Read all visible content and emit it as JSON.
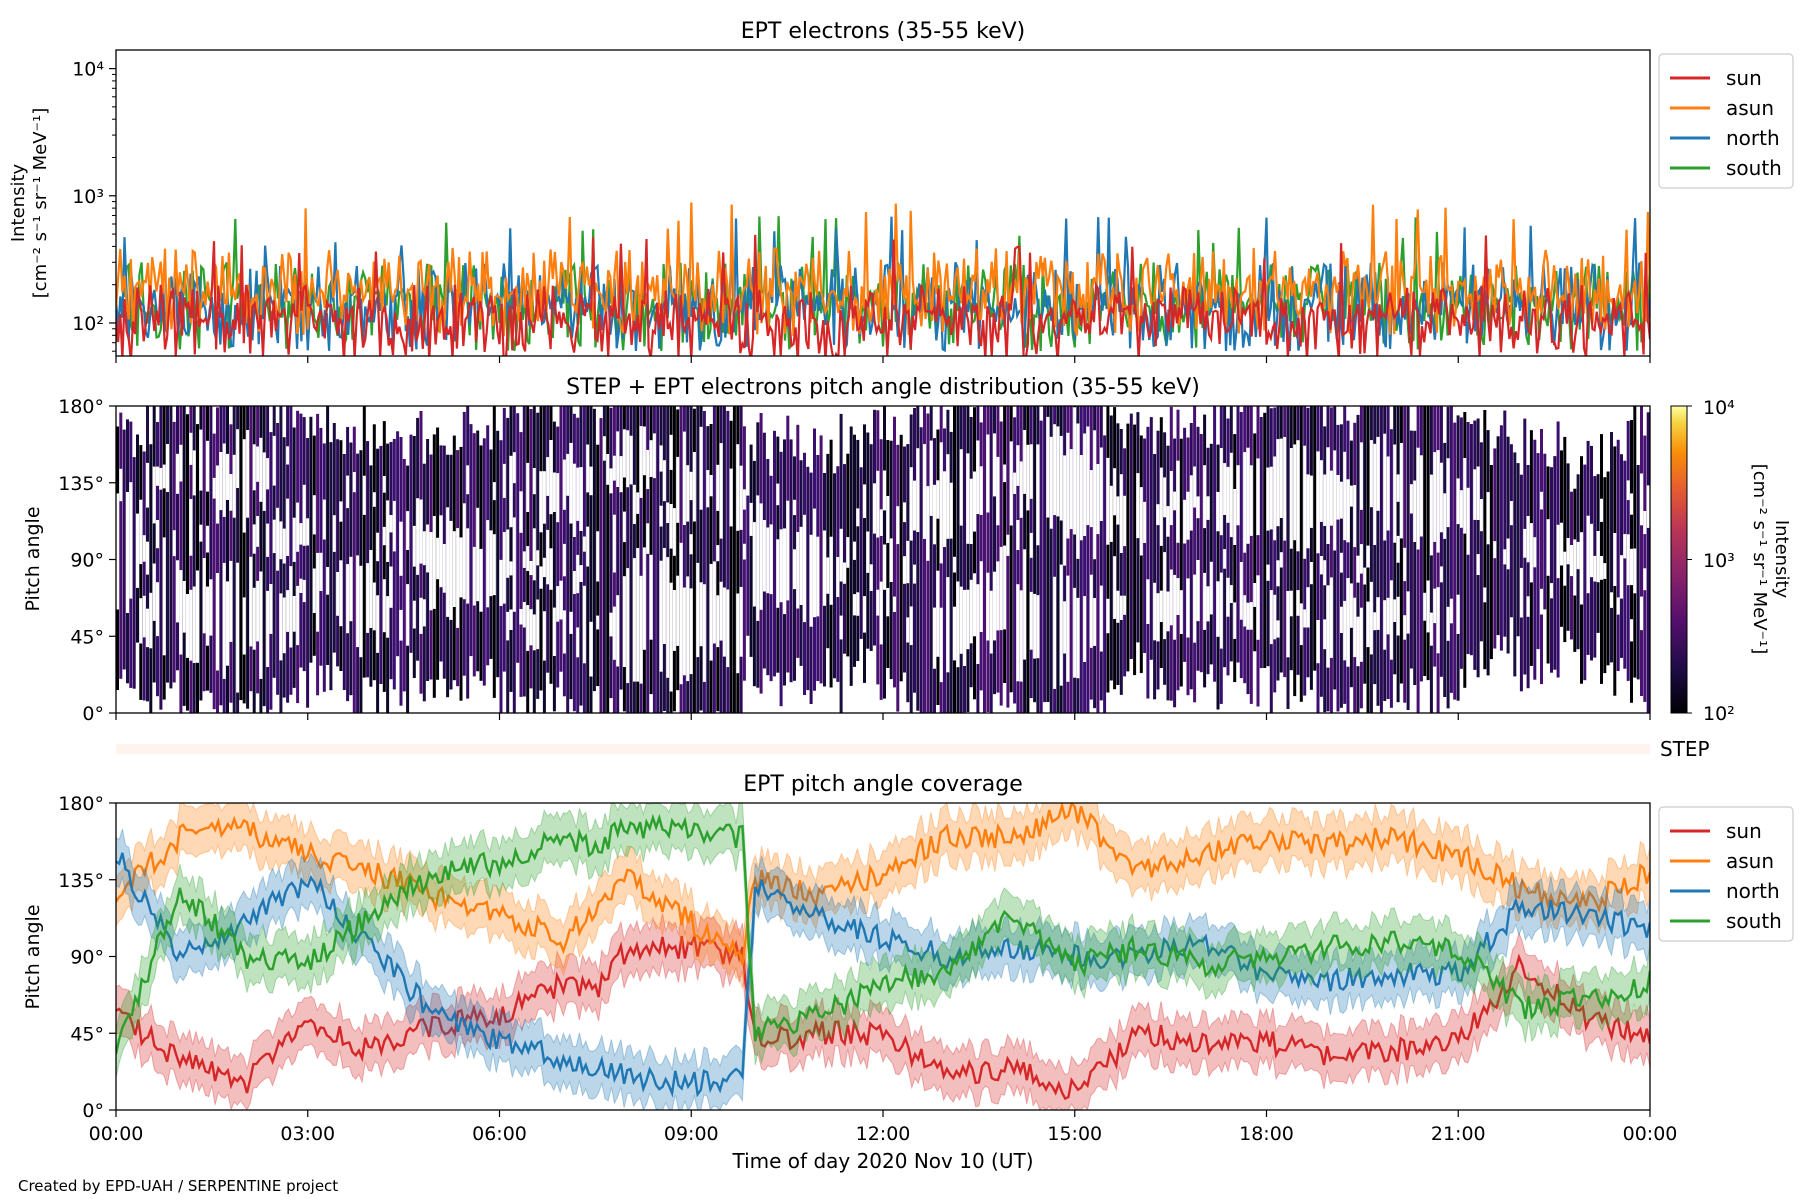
{
  "figure": {
    "credit": "Created by EPD-UAH / SERPENTINE project",
    "xlabel": "Time of day 2020 Nov 10 (UT)",
    "xticks": [
      "00:00",
      "03:00",
      "06:00",
      "09:00",
      "12:00",
      "15:00",
      "18:00",
      "21:00",
      "00:00"
    ]
  },
  "colors": {
    "sun": "#d62728",
    "asun": "#ff7f0e",
    "north": "#1f77b4",
    "south": "#2ca02c"
  },
  "chart_data": [
    {
      "type": "line",
      "title": "EPT electrons (35-55 keV)",
      "ylabel": [
        "Intensity",
        "[cm⁻² s⁻¹ sr⁻¹ MeV⁻¹]"
      ],
      "yscale": "log",
      "ylim": [
        55,
        14000
      ],
      "yticks": [
        {
          "v": 100,
          "label": "10²"
        },
        {
          "v": 1000,
          "label": "10³"
        },
        {
          "v": 10000,
          "label": "10⁴"
        }
      ],
      "xlim_hours": [
        0,
        24
      ],
      "legend": "upper-right-outside",
      "series": [
        {
          "name": "sun",
          "baseline": 80,
          "spread": 120
        },
        {
          "name": "asun",
          "baseline": 130,
          "spread": 260
        },
        {
          "name": "north",
          "baseline": 100,
          "spread": 200
        },
        {
          "name": "south",
          "baseline": 100,
          "spread": 200
        }
      ]
    },
    {
      "type": "heatmap",
      "title": "STEP + EPT electrons pitch angle distribution (35-55 keV)",
      "ylabel": "Pitch angle",
      "yticks": [
        "0°",
        "45°",
        "90°",
        "135°",
        "180°"
      ],
      "ylim": [
        0,
        180
      ],
      "colorbar": {
        "label": [
          "Intensity",
          "[cm⁻² s⁻¹ sr⁻¹ MeV⁻¹]"
        ],
        "scale": "log",
        "range": [
          100,
          10000
        ],
        "ticks": [
          "10²",
          "10³",
          "10⁴"
        ],
        "colormap": "inferno"
      }
    },
    {
      "type": "bar",
      "title": "",
      "label": "STEP",
      "color": "#fff3ee"
    },
    {
      "type": "line",
      "title": "EPT pitch angle coverage",
      "ylabel": "Pitch angle",
      "yticks": [
        "0°",
        "45°",
        "90°",
        "135°",
        "180°"
      ],
      "ylim": [
        0,
        180
      ],
      "legend": "upper-right-outside",
      "series": [
        {
          "name": "sun",
          "x": [
            0,
            1,
            2,
            3,
            4,
            5,
            6,
            7,
            7.5,
            8,
            9,
            9.8,
            10,
            11,
            12,
            13,
            14,
            15,
            16,
            17,
            18,
            19,
            20,
            21,
            22,
            23,
            24
          ],
          "values": [
            55,
            30,
            15,
            50,
            35,
            50,
            55,
            75,
            70,
            95,
            95,
            90,
            40,
            45,
            45,
            20,
            25,
            10,
            45,
            40,
            40,
            30,
            35,
            40,
            85,
            55,
            40
          ]
        },
        {
          "name": "asun",
          "x": [
            0,
            1,
            2,
            3,
            4,
            5,
            6,
            7,
            7.5,
            8,
            9,
            9.8,
            10,
            11,
            12,
            13,
            14,
            15,
            16,
            17,
            18,
            19,
            20,
            21,
            22,
            23,
            24
          ],
          "values": [
            125,
            160,
            165,
            150,
            140,
            125,
            115,
            100,
            120,
            135,
            110,
            90,
            135,
            125,
            140,
            160,
            160,
            175,
            140,
            150,
            160,
            155,
            160,
            150,
            130,
            120,
            140
          ]
        },
        {
          "name": "north",
          "x": [
            0,
            1,
            2,
            3,
            4,
            5,
            6,
            7,
            7.5,
            8,
            9,
            9.8,
            10,
            11,
            12,
            13,
            14,
            15,
            16,
            17,
            18,
            19,
            20,
            21,
            22,
            23,
            24
          ],
          "values": [
            150,
            90,
            110,
            135,
            95,
            55,
            40,
            30,
            25,
            20,
            15,
            20,
            130,
            115,
            100,
            90,
            95,
            90,
            90,
            100,
            80,
            75,
            80,
            80,
            120,
            115,
            105
          ]
        },
        {
          "name": "south",
          "x": [
            0,
            1,
            2,
            3,
            4,
            5,
            6,
            7,
            7.5,
            8,
            9,
            9.8,
            10,
            11,
            12,
            13,
            14,
            15,
            16,
            17,
            18,
            19,
            20,
            21,
            22,
            23,
            24
          ],
          "values": [
            35,
            130,
            90,
            85,
            115,
            140,
            145,
            160,
            155,
            165,
            165,
            160,
            45,
            55,
            75,
            80,
            115,
            85,
            95,
            85,
            90,
            95,
            100,
            95,
            60,
            65,
            75
          ]
        }
      ]
    }
  ]
}
